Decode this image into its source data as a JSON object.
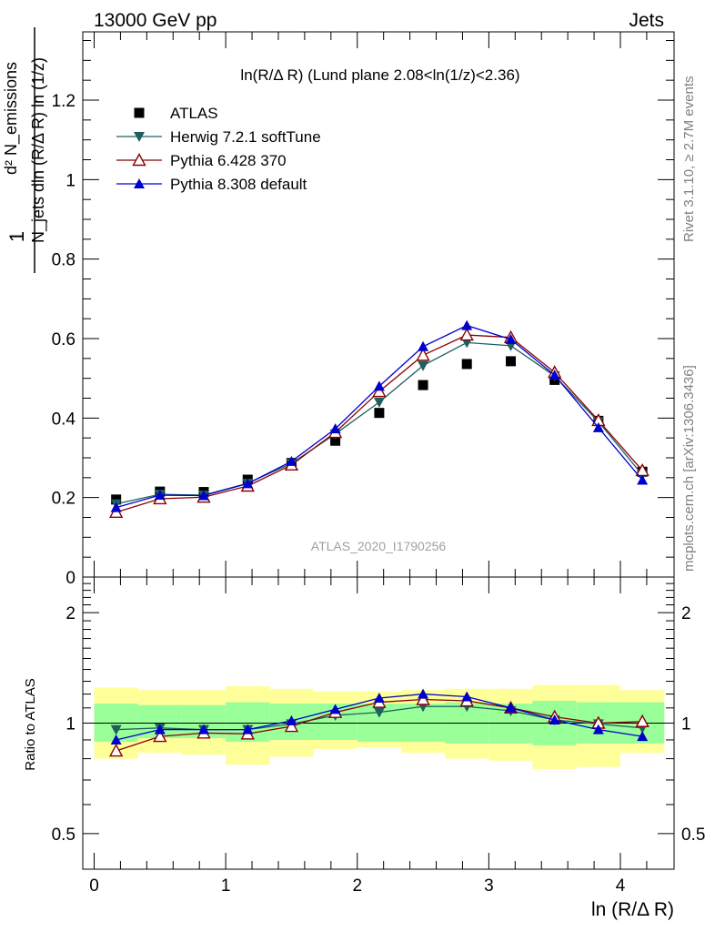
{
  "header": {
    "left": "13000 GeV pp",
    "right": "Jets"
  },
  "side_labels": {
    "rivet": "Rivet 3.1.10, ≥ 2.7M events",
    "mcplots": "mcplots.cern.ch [arXiv:1306.3436]"
  },
  "main_plot": {
    "title": "ln(R/Δ R) (Lund plane 2.08<ln(1/z)<2.36)",
    "analysis_label": "ATLAS_2020_I1790256",
    "ylabel_lines": [
      "1",
      "N_jets dln (R/Δ R) ln (1/z)",
      "d² N_emissions"
    ],
    "ytick_labels": [
      "0",
      "0.2",
      "0.4",
      "0.6",
      "0.8",
      "1",
      "1.2"
    ]
  },
  "ratio_plot": {
    "ylabel": "Ratio to ATLAS",
    "ytick_labels": [
      "0.5",
      "1",
      "2"
    ]
  },
  "xaxis": {
    "label": "ln (R/Δ R)",
    "tick_labels": [
      "0",
      "1",
      "2",
      "3",
      "4"
    ]
  },
  "legend": [
    {
      "name": "ATLAS",
      "color": "#000000",
      "marker": "square"
    },
    {
      "name": "Herwig 7.2.1 softTune",
      "color": "#1f5f5f",
      "marker": "triangle-down"
    },
    {
      "name": "Pythia 6.428 370",
      "color": "#8b0000",
      "marker": "triangle-open"
    },
    {
      "name": "Pythia 8.308 default",
      "color": "#0000cd",
      "marker": "triangle-up"
    }
  ],
  "chart_data": {
    "type": "scatter",
    "x": [
      0.167,
      0.5,
      0.833,
      1.167,
      1.5,
      1.833,
      2.167,
      2.5,
      2.833,
      3.167,
      3.5,
      3.833,
      4.167
    ],
    "xlim": [
      -0.1,
      4.43
    ],
    "ylim": [
      0,
      1.4
    ],
    "ratio_ylim": [
      0.4,
      2.5
    ],
    "ratio_scale": "log",
    "series": [
      {
        "name": "ATLAS",
        "values": [
          0.195,
          0.215,
          0.214,
          0.245,
          0.287,
          0.343,
          0.413,
          0.483,
          0.536,
          0.543,
          0.496,
          0.393,
          0.265
        ]
      },
      {
        "name": "Herwig 7.2.1 softTune",
        "values": [
          0.184,
          0.208,
          0.206,
          0.236,
          0.286,
          0.36,
          0.44,
          0.532,
          0.59,
          0.582,
          0.506,
          0.391,
          0.257
        ]
      },
      {
        "name": "Pythia 6.428 370",
        "values": [
          0.163,
          0.197,
          0.201,
          0.229,
          0.282,
          0.364,
          0.467,
          0.558,
          0.609,
          0.603,
          0.515,
          0.394,
          0.268
        ]
      },
      {
        "name": "Pythia 8.308 default",
        "values": [
          0.175,
          0.206,
          0.205,
          0.235,
          0.291,
          0.373,
          0.48,
          0.58,
          0.633,
          0.598,
          0.508,
          0.376,
          0.244
        ]
      }
    ],
    "ratio_series": [
      {
        "name": "Herwig 7.2.1 softTune",
        "values": [
          0.96,
          0.97,
          0.96,
          0.96,
          0.995,
          1.05,
          1.07,
          1.11,
          1.11,
          1.08,
          1.02,
          0.995,
          0.97
        ]
      },
      {
        "name": "Pythia 6.428 370",
        "values": [
          0.84,
          0.92,
          0.94,
          0.935,
          0.98,
          1.07,
          1.14,
          1.16,
          1.15,
          1.1,
          1.04,
          1.0,
          1.01
        ]
      },
      {
        "name": "Pythia 8.308 default",
        "values": [
          0.9,
          0.96,
          0.96,
          0.96,
          1.015,
          1.09,
          1.17,
          1.2,
          1.18,
          1.1,
          1.02,
          0.96,
          0.92
        ]
      }
    ],
    "uncertainty_bands": {
      "stat_sys_inner": [
        [
          0.89,
          1.13
        ],
        [
          0.91,
          1.12
        ],
        [
          0.91,
          1.12
        ],
        [
          0.89,
          1.14
        ],
        [
          0.9,
          1.13
        ],
        [
          0.9,
          1.13
        ],
        [
          0.89,
          1.13
        ],
        [
          0.89,
          1.13
        ],
        [
          0.88,
          1.14
        ],
        [
          0.88,
          1.13
        ],
        [
          0.87,
          1.15
        ],
        [
          0.88,
          1.14
        ],
        [
          0.88,
          1.14
        ]
      ],
      "total_outer": [
        [
          0.8,
          1.25
        ],
        [
          0.83,
          1.23
        ],
        [
          0.82,
          1.23
        ],
        [
          0.77,
          1.26
        ],
        [
          0.81,
          1.24
        ],
        [
          0.85,
          1.22
        ],
        [
          0.86,
          1.22
        ],
        [
          0.83,
          1.23
        ],
        [
          0.8,
          1.24
        ],
        [
          0.79,
          1.24
        ],
        [
          0.75,
          1.27
        ],
        [
          0.76,
          1.27
        ],
        [
          0.83,
          1.23
        ]
      ]
    }
  }
}
